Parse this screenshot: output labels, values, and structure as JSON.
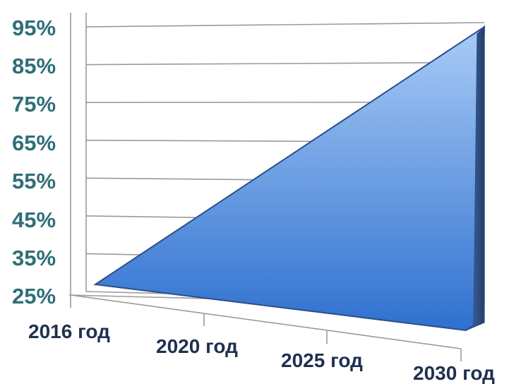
{
  "chart_data": {
    "type": "area",
    "title": "",
    "xlabel": "",
    "ylabel": "",
    "categories": [
      "2016 год",
      "2020 год",
      "2025 год",
      "2030 год"
    ],
    "x": [
      2016,
      2020,
      2025,
      2030
    ],
    "series": [
      {
        "values": [
          25,
          45,
          70,
          95
        ]
      }
    ],
    "yticks": [
      "25%",
      "35%",
      "45%",
      "55%",
      "65%",
      "75%",
      "85%",
      "95%"
    ],
    "ylim": [
      25,
      95
    ],
    "grid": true,
    "legend": "none",
    "style": "3d",
    "colors": {
      "fill_top": "#a9ccf6",
      "fill_bottom": "#2f70cf",
      "front_edge": "#2b4f8a",
      "side_face": "#2f4f86",
      "tick_label": "#2f6f78",
      "category_label": "#1f3050",
      "grid_line": "#9a9a9a"
    }
  }
}
